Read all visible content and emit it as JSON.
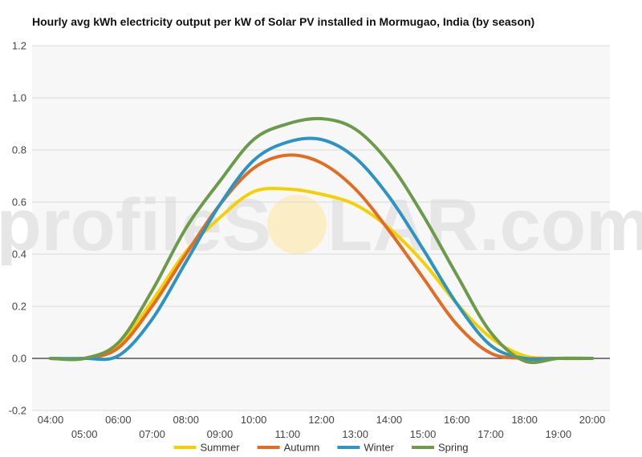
{
  "watermark": {
    "text_left": "profileS",
    "text_right": "LAR.com",
    "sun_color": "#fbeec7"
  },
  "colors": {
    "plot_background": "#f7f7f7",
    "gridline": "#d9d9d9",
    "zero_line": "#333333"
  },
  "chart_data": {
    "type": "line",
    "title": "Hourly avg kWh electricity output per kW of Solar PV installed in Mormugao, India (by season)",
    "xlabel": "",
    "ylabel": "",
    "ylim": [
      -0.2,
      1.2
    ],
    "y_ticks": [
      -0.2,
      0.0,
      0.2,
      0.4,
      0.6,
      0.8,
      1.0,
      1.2
    ],
    "y_tick_labels": [
      "-0.2",
      "0.0",
      "0.2",
      "0.4",
      "0.6",
      "0.8",
      "1.0",
      "1.2"
    ],
    "x": [
      "04:00",
      "05:00",
      "06:00",
      "07:00",
      "08:00",
      "09:00",
      "10:00",
      "11:00",
      "12:00",
      "13:00",
      "14:00",
      "15:00",
      "16:00",
      "17:00",
      "18:00",
      "19:00",
      "20:00"
    ],
    "grid": true,
    "legend_position": "bottom",
    "series": [
      {
        "name": "Summer",
        "color": "#f5d000",
        "values": [
          0.0,
          0.0,
          0.05,
          0.22,
          0.41,
          0.54,
          0.64,
          0.65,
          0.63,
          0.59,
          0.5,
          0.37,
          0.21,
          0.08,
          0.01,
          0.0,
          0.0
        ]
      },
      {
        "name": "Autumn",
        "color": "#e16d22",
        "values": [
          0.0,
          0.0,
          0.04,
          0.2,
          0.4,
          0.59,
          0.73,
          0.78,
          0.75,
          0.65,
          0.49,
          0.31,
          0.13,
          0.02,
          0.0,
          0.0,
          0.0
        ]
      },
      {
        "name": "Winter",
        "color": "#2c93c2",
        "values": [
          0.0,
          0.0,
          0.01,
          0.15,
          0.37,
          0.59,
          0.76,
          0.83,
          0.84,
          0.77,
          0.62,
          0.42,
          0.21,
          0.05,
          0.0,
          0.0,
          0.0
        ]
      },
      {
        "name": "Spring",
        "color": "#6b9a4b",
        "values": [
          0.0,
          0.0,
          0.06,
          0.26,
          0.5,
          0.68,
          0.84,
          0.9,
          0.92,
          0.88,
          0.75,
          0.55,
          0.32,
          0.1,
          -0.01,
          0.0,
          0.0
        ]
      }
    ]
  }
}
